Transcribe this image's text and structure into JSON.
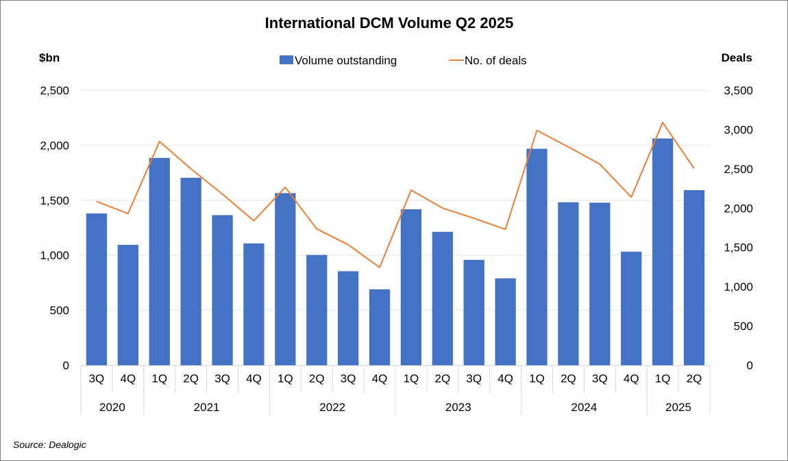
{
  "chart_data": {
    "type": "bar",
    "title": "International DCM Volume Q2 2025",
    "ylabel_left": "$bn",
    "ylabel_right": "Deals",
    "ylim_left": [
      0,
      2500
    ],
    "ylim_right": [
      0,
      3500
    ],
    "yticks_left": [
      "0",
      "500",
      "1,000",
      "1,500",
      "2,000",
      "2,500"
    ],
    "yticks_right": [
      "0",
      "500",
      "1,000",
      "1,500",
      "2,000",
      "2,500",
      "3,000",
      "3,500"
    ],
    "categories": [
      "3Q",
      "4Q",
      "1Q",
      "2Q",
      "3Q",
      "4Q",
      "1Q",
      "2Q",
      "3Q",
      "4Q",
      "1Q",
      "2Q",
      "3Q",
      "4Q",
      "1Q",
      "2Q",
      "3Q",
      "4Q",
      "1Q",
      "2Q"
    ],
    "year_groups": [
      {
        "label": "2020",
        "count": 2
      },
      {
        "label": "2021",
        "count": 4
      },
      {
        "label": "2022",
        "count": 4
      },
      {
        "label": "2023",
        "count": 4
      },
      {
        "label": "2024",
        "count": 4
      },
      {
        "label": "2025",
        "count": 2
      }
    ],
    "series": [
      {
        "name": "Volume outstanding",
        "kind": "bar",
        "axis": "left",
        "color": "#4472C4",
        "values": [
          1380,
          1095,
          1885,
          1705,
          1365,
          1108,
          1565,
          1003,
          855,
          690,
          1418,
          1213,
          958,
          790,
          1968,
          1482,
          1478,
          1033,
          2062,
          1592
        ]
      },
      {
        "name": "No. of deals",
        "kind": "line",
        "axis": "right",
        "color": "#ED7D31",
        "values": [
          2085,
          1930,
          2850,
          2500,
          2180,
          1840,
          2265,
          1735,
          1535,
          1245,
          2230,
          2000,
          1870,
          1730,
          2990,
          2780,
          2560,
          2140,
          3090,
          2505
        ]
      }
    ],
    "grid": true,
    "legend": "top-center"
  },
  "source": "Source: Dealogic"
}
